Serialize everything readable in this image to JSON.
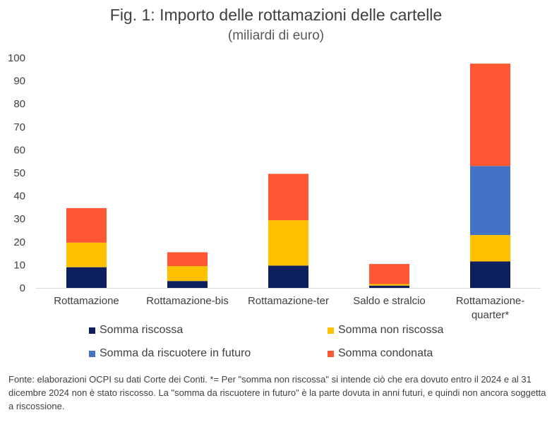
{
  "chart_data": {
    "type": "bar",
    "stacked": true,
    "title": "Fig. 1: Importo delle rottamazioni delle cartelle",
    "subtitle": "(miliardi di euro)",
    "categories": [
      [
        "Rottamazione"
      ],
      [
        "Rottamazione-bis"
      ],
      [
        "Rottamazione-ter"
      ],
      [
        "Saldo e stralcio"
      ],
      [
        "Rottamazione-",
        "quarter*"
      ]
    ],
    "ylim": [
      0,
      100
    ],
    "yticks": [
      "0",
      "10",
      "20",
      "30",
      "40",
      "50",
      "60",
      "70",
      "80",
      "90",
      "100"
    ],
    "series": [
      {
        "name": "Somma riscossa",
        "color": "#0d1f5c",
        "values": [
          9,
          3,
          9.7,
          1,
          11.5
        ]
      },
      {
        "name": "Somma non riscossa",
        "color": "#ffc000",
        "values": [
          10.7,
          6.5,
          19.7,
          0.7,
          11.5
        ]
      },
      {
        "name": "Somma da riscuotere in futuro",
        "color": "#4472c4",
        "values": [
          0,
          0,
          0,
          0,
          30
        ]
      },
      {
        "name": "Somma condonata",
        "color": "#ff5733",
        "values": [
          15,
          6,
          20.2,
          8.7,
          44.5
        ]
      }
    ],
    "legend_position": "bottom",
    "grid": false
  },
  "footnote": "Fonte: elaborazioni OCPI su dati Corte dei Conti. *= Per \"somma non riscossa\" si intende ciò che era dovuto entro il 2024 e al 31 dicembre 2024 non è stato riscosso. La \"somma da riscuotere in futuro\" è la parte dovuta in anni futuri, e quindi non ancora soggetta a riscossione."
}
